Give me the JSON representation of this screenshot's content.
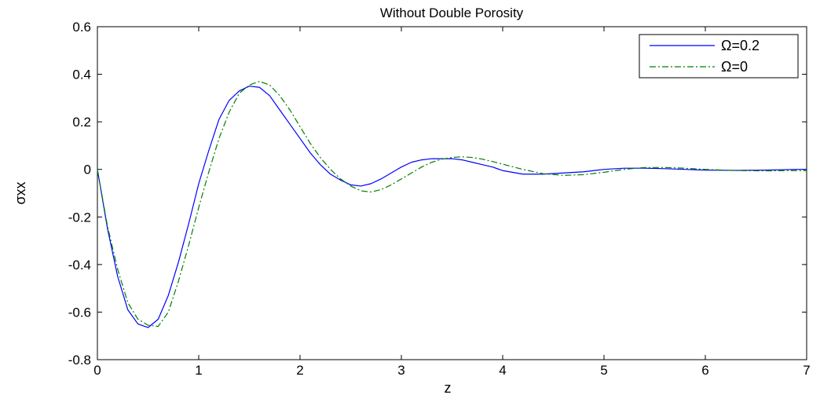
{
  "chart_data": {
    "type": "line",
    "title": "Without Double Porosity",
    "xlabel": "z",
    "ylabel": "σxx",
    "xlim": [
      0,
      7
    ],
    "ylim": [
      -0.8,
      0.6
    ],
    "xticks": [
      "0",
      "1",
      "2",
      "3",
      "4",
      "5",
      "6",
      "7"
    ],
    "yticks": [
      "-0.8",
      "-0.6",
      "-0.4",
      "-0.2",
      "0",
      "0.2",
      "0.4",
      "0.6"
    ],
    "grid": false,
    "legend_position": "top-right",
    "series": [
      {
        "name": "Ω=0.2",
        "color": "#0000ff",
        "style": "solid",
        "x": [
          0,
          0.1,
          0.2,
          0.3,
          0.4,
          0.5,
          0.6,
          0.7,
          0.8,
          0.9,
          1.0,
          1.1,
          1.2,
          1.3,
          1.4,
          1.5,
          1.6,
          1.7,
          1.8,
          1.9,
          2.0,
          2.1,
          2.2,
          2.3,
          2.4,
          2.5,
          2.6,
          2.7,
          2.8,
          2.9,
          3.0,
          3.1,
          3.2,
          3.3,
          3.4,
          3.5,
          3.6,
          3.7,
          3.8,
          3.9,
          4.0,
          4.2,
          4.4,
          4.6,
          4.8,
          5.0,
          5.2,
          5.4,
          5.6,
          5.8,
          6.0,
          6.3,
          6.6,
          6.9,
          7.0
        ],
        "y": [
          0,
          -0.25,
          -0.45,
          -0.59,
          -0.65,
          -0.665,
          -0.63,
          -0.53,
          -0.39,
          -0.23,
          -0.06,
          0.08,
          0.21,
          0.29,
          0.33,
          0.35,
          0.345,
          0.31,
          0.25,
          0.19,
          0.13,
          0.07,
          0.02,
          -0.02,
          -0.045,
          -0.065,
          -0.07,
          -0.06,
          -0.04,
          -0.015,
          0.01,
          0.03,
          0.04,
          0.045,
          0.045,
          0.045,
          0.04,
          0.03,
          0.02,
          0.01,
          -0.005,
          -0.02,
          -0.02,
          -0.015,
          -0.01,
          0.0,
          0.005,
          0.005,
          0.003,
          0.0,
          -0.003,
          -0.004,
          -0.003,
          0.0,
          0.0
        ]
      },
      {
        "name": "Ω=0",
        "color": "#008000",
        "style": "dashdot",
        "x": [
          0,
          0.1,
          0.2,
          0.3,
          0.4,
          0.5,
          0.6,
          0.7,
          0.8,
          0.9,
          1.0,
          1.1,
          1.2,
          1.3,
          1.4,
          1.5,
          1.6,
          1.7,
          1.8,
          1.9,
          2.0,
          2.1,
          2.2,
          2.3,
          2.4,
          2.5,
          2.6,
          2.7,
          2.8,
          2.9,
          3.0,
          3.1,
          3.2,
          3.3,
          3.4,
          3.5,
          3.6,
          3.7,
          3.8,
          3.9,
          4.0,
          4.2,
          4.4,
          4.6,
          4.8,
          5.0,
          5.2,
          5.4,
          5.6,
          5.8,
          6.0,
          6.3,
          6.6,
          6.9,
          7.0
        ],
        "y": [
          0,
          -0.24,
          -0.42,
          -0.56,
          -0.63,
          -0.655,
          -0.66,
          -0.6,
          -0.47,
          -0.32,
          -0.16,
          -0.01,
          0.13,
          0.24,
          0.32,
          0.355,
          0.37,
          0.355,
          0.31,
          0.25,
          0.18,
          0.11,
          0.05,
          0.0,
          -0.04,
          -0.07,
          -0.09,
          -0.095,
          -0.085,
          -0.065,
          -0.04,
          -0.015,
          0.01,
          0.03,
          0.043,
          0.05,
          0.053,
          0.05,
          0.043,
          0.033,
          0.022,
          0.0,
          -0.018,
          -0.025,
          -0.022,
          -0.012,
          0.0,
          0.008,
          0.008,
          0.005,
          0.0,
          -0.005,
          -0.006,
          -0.005,
          -0.005
        ]
      }
    ]
  }
}
